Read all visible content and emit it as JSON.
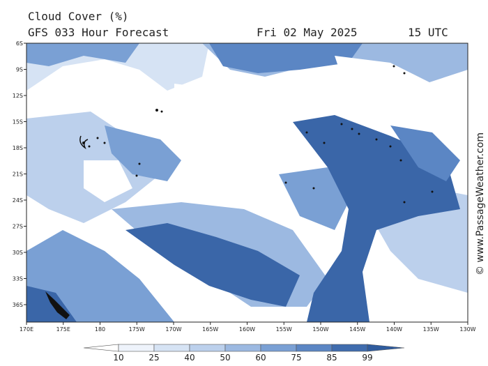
{
  "header": {
    "title": "Cloud Cover (%)",
    "model": "GFS 033 Hour Forecast",
    "date": "Fri 02 May 2025",
    "time": "15 UTC"
  },
  "credit": "© www.PassageWeather.com",
  "axes": {
    "lat_labels": [
      "6S",
      "9S",
      "12S",
      "15S",
      "18S",
      "21S",
      "24S",
      "27S",
      "30S",
      "33S",
      "36S"
    ],
    "lon_labels": [
      "170E",
      "175E",
      "180",
      "175W",
      "170W",
      "165W",
      "160W",
      "155W",
      "150W",
      "145W",
      "140W",
      "135W",
      "130W"
    ]
  },
  "legend": {
    "values": [
      "10",
      "25",
      "40",
      "50",
      "60",
      "75",
      "85",
      "99"
    ],
    "colors": [
      "#ffffff",
      "#eef3fb",
      "#d6e3f4",
      "#bcd0ec",
      "#9cb9e1",
      "#7aa0d4",
      "#5b86c4",
      "#3f6cae",
      "#2f5c9e"
    ]
  },
  "palette": {
    "background": "#ffffff",
    "deep": "#3a66a8",
    "mid": "#5b86c4",
    "light": "#9cb9e1",
    "pale": "#d6e3f4",
    "land": "#111111"
  }
}
